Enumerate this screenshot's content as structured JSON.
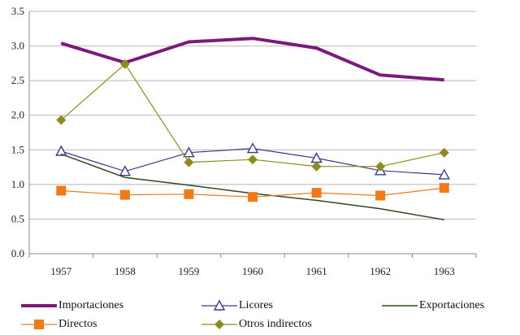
{
  "chart_data": {
    "type": "line",
    "title": "",
    "xlabel": "",
    "ylabel": "",
    "x": [
      "1957",
      "1958",
      "1959",
      "1960",
      "1961",
      "1962",
      "1963"
    ],
    "ylim": [
      0,
      3.5
    ],
    "yticks": [
      "0.0",
      "0.5",
      "1.0",
      "1.5",
      "2.0",
      "2.5",
      "3.0",
      "3.5"
    ],
    "grid": "horizontal",
    "legend_position": "bottom",
    "series": [
      {
        "name": "Importaciones",
        "color": "#7b1a7b",
        "marker": "none",
        "width": "thick",
        "values": [
          3.04,
          2.76,
          3.06,
          3.11,
          2.97,
          2.58,
          2.51
        ]
      },
      {
        "name": "Licores",
        "color": "#3a3a8c",
        "marker": "triangle-open",
        "values": [
          1.48,
          1.19,
          1.46,
          1.52,
          1.38,
          1.2,
          1.14
        ]
      },
      {
        "name": "Exportaciones",
        "color": "#2f4a1f",
        "marker": "none",
        "values": [
          1.44,
          1.1,
          0.99,
          0.87,
          0.77,
          0.65,
          0.49
        ]
      },
      {
        "name": "Directos",
        "color": "#f07a1a",
        "marker": "square",
        "values": [
          0.91,
          0.85,
          0.86,
          0.82,
          0.88,
          0.84,
          0.95
        ]
      },
      {
        "name": "Otros indirectos",
        "color": "#8c8c1e",
        "marker": "diamond",
        "values": [
          1.93,
          2.74,
          1.32,
          1.36,
          1.26,
          1.26,
          1.46
        ]
      }
    ]
  }
}
